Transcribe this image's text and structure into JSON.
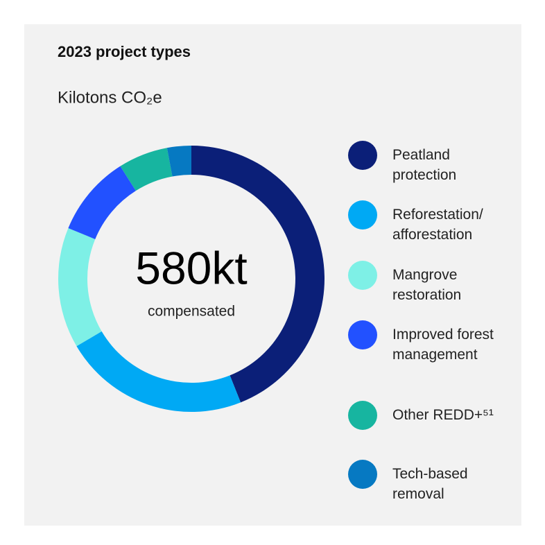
{
  "chart_data": {
    "type": "donut",
    "title": "2023 project types",
    "subtitle": "Kilotons CO₂e",
    "center_value": "580kt",
    "center_label": "compensated",
    "categories": [
      "Peatland protection",
      "Reforestation/ afforestation",
      "Mangrove restoration",
      "Improved forest management",
      "Other REDD+⁵¹",
      "Tech-based removal"
    ],
    "values": [
      255,
      131,
      85,
      57,
      35,
      17
    ],
    "colors": [
      "#0b1f78",
      "#00a9f4",
      "#7ef0e6",
      "#2251ff",
      "#17b5a0",
      "#0679c2"
    ]
  }
}
